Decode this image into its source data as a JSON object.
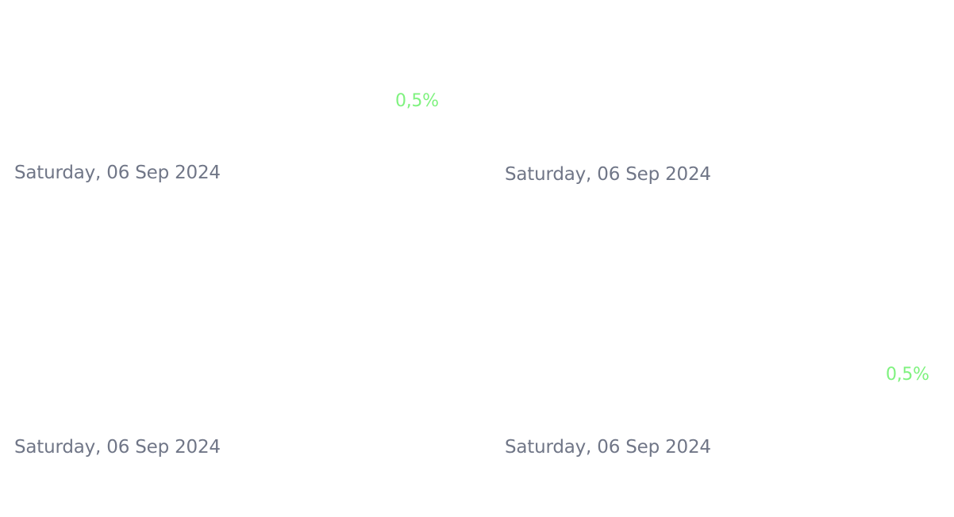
{
  "colors": {
    "date_text": "#707687",
    "percent_positive": "#7ff27f"
  },
  "cards": [
    {
      "date": "Saturday, 06 Sep 2024",
      "change": "0,5%"
    },
    {
      "date": "Saturday, 06 Sep 2024",
      "change": ""
    },
    {
      "date": "Saturday, 06 Sep 2024",
      "change": ""
    },
    {
      "date": "Saturday, 06 Sep 2024",
      "change": "0,5%"
    }
  ]
}
